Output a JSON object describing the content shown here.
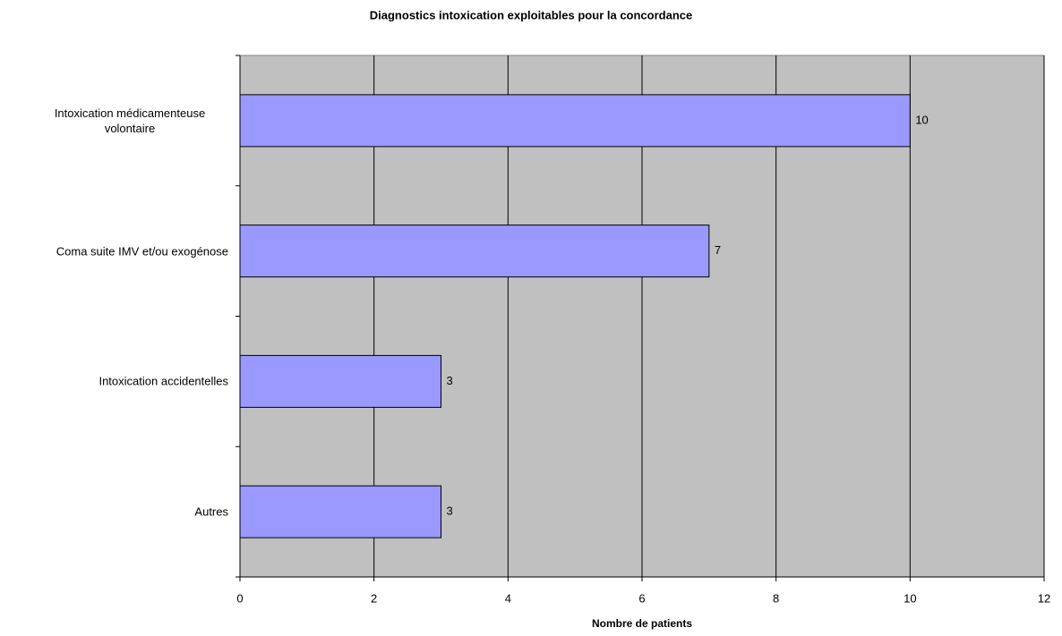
{
  "chart_data": {
    "type": "bar",
    "orientation": "horizontal",
    "title": "Diagnostics intoxication exploitables pour la concordance",
    "xlabel": "Nombre de patients",
    "categories": [
      "Intoxication médicamenteuse volontaire",
      "Coma suite IMV et/ou exogénose",
      "Intoxication accidentelles",
      "Autres"
    ],
    "values": [
      10,
      7,
      3,
      3
    ],
    "color": "#9999ff",
    "xlim": [
      0,
      12
    ],
    "xticks": [
      0,
      2,
      4,
      6,
      8,
      10,
      12
    ],
    "grid": true
  }
}
